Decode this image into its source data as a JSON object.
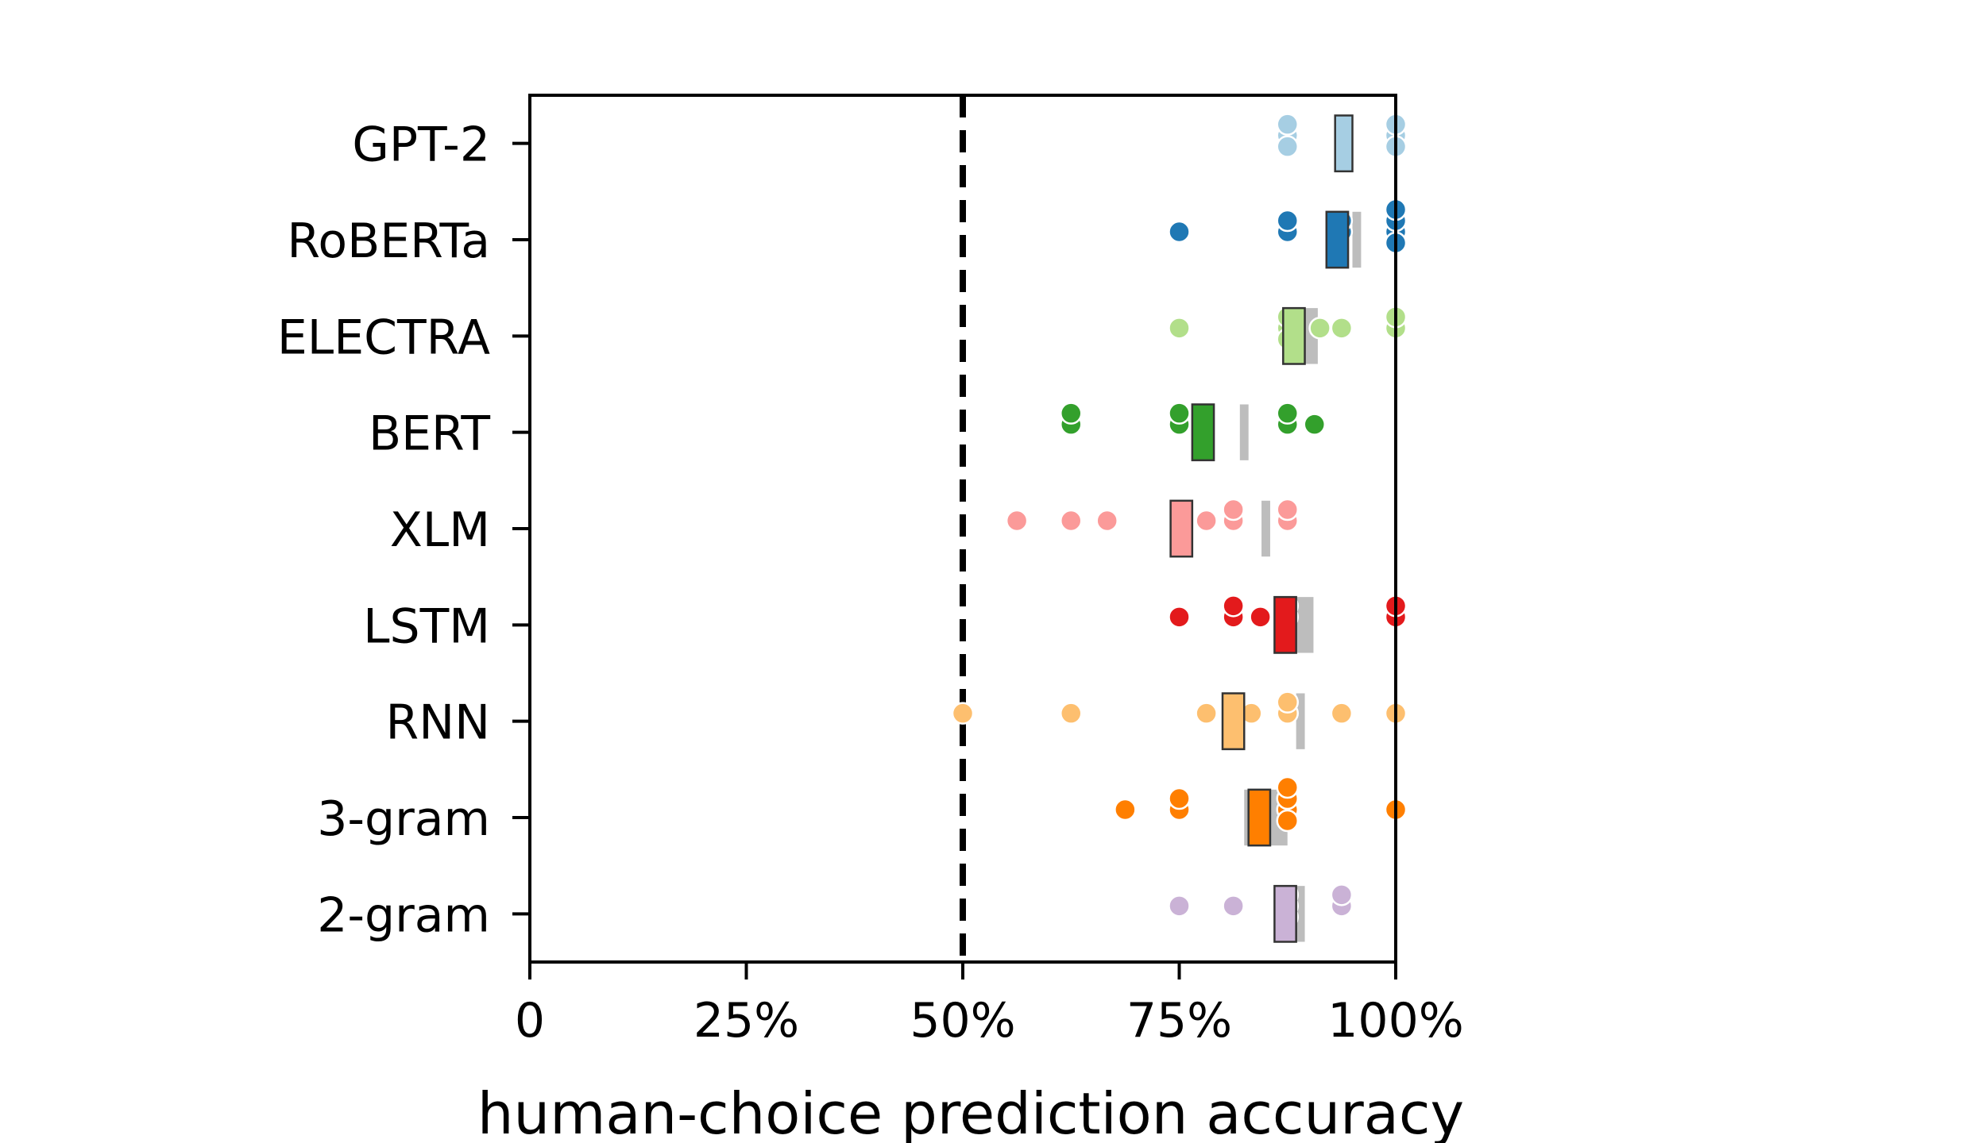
{
  "chart_data": {
    "type": "scatter",
    "xlabel": "human-choice prediction accuracy",
    "xlim": [
      0,
      1
    ],
    "xticks": [
      {
        "value": 0,
        "label": "0"
      },
      {
        "value": 0.25,
        "label": "25%"
      },
      {
        "value": 0.5,
        "label": "50%"
      },
      {
        "value": 0.75,
        "label": "75%"
      },
      {
        "value": 1.0,
        "label": "100%"
      }
    ],
    "reference_line": {
      "value": 0.5,
      "style": "dashed",
      "color": "#000000"
    },
    "grid": false,
    "legend": "none",
    "series": [
      {
        "name": "GPT-2",
        "color": "#a6cee3",
        "points": [
          0.875,
          0.875,
          0.875,
          1.0,
          1.0,
          1.0
        ],
        "box": [
          0.93,
          0.95
        ],
        "bg_box": [
          0.93,
          0.95
        ]
      },
      {
        "name": "RoBERTa",
        "color": "#1f78b4",
        "points": [
          0.75,
          0.875,
          0.875,
          0.9375,
          0.9375,
          1.0,
          1.0,
          1.0,
          1.0
        ],
        "box": [
          0.92,
          0.945
        ],
        "bg_box": [
          0.95,
          0.96
        ]
      },
      {
        "name": "ELECTRA",
        "color": "#b2df8a",
        "points": [
          0.75,
          0.875,
          0.875,
          0.875,
          0.9125,
          0.9375,
          1.0,
          1.0
        ],
        "box": [
          0.87,
          0.895
        ],
        "bg_box": [
          0.89,
          0.91
        ]
      },
      {
        "name": "BERT",
        "color": "#33a02c",
        "points": [
          0.625,
          0.625,
          0.75,
          0.75,
          0.875,
          0.875,
          0.9062
        ],
        "box": [
          0.765,
          0.79
        ],
        "bg_box": [
          0.82,
          0.83
        ]
      },
      {
        "name": "XLM",
        "color": "#fb9a99",
        "points": [
          0.5625,
          0.625,
          0.6667,
          0.7813,
          0.8125,
          0.8125,
          0.875,
          0.875
        ],
        "box": [
          0.74,
          0.765
        ],
        "bg_box": [
          0.845,
          0.855
        ]
      },
      {
        "name": "LSTM",
        "color": "#e31a1c",
        "points": [
          0.75,
          0.8125,
          0.8125,
          0.8437,
          0.875,
          0.875,
          1.0,
          1.0
        ],
        "box": [
          0.86,
          0.885
        ],
        "bg_box": [
          0.875,
          0.905
        ]
      },
      {
        "name": "RNN",
        "color": "#fdbf6f",
        "points": [
          0.5,
          0.625,
          0.7813,
          0.8333,
          0.875,
          0.875,
          0.9375,
          1.0
        ],
        "box": [
          0.8,
          0.825
        ],
        "bg_box": [
          0.885,
          0.895
        ]
      },
      {
        "name": "3-gram",
        "color": "#ff7f00",
        "points": [
          0.6875,
          0.75,
          0.75,
          0.875,
          0.875,
          0.875,
          0.875,
          1.0
        ],
        "box": [
          0.83,
          0.855
        ],
        "bg_box": [
          0.825,
          0.875
        ]
      },
      {
        "name": "2-gram",
        "color": "#cab2d6",
        "points": [
          0.75,
          0.8125,
          0.875,
          0.875,
          0.875,
          0.9375,
          0.9375
        ],
        "box": [
          0.86,
          0.885
        ],
        "bg_box": [
          0.875,
          0.895
        ]
      }
    ]
  }
}
